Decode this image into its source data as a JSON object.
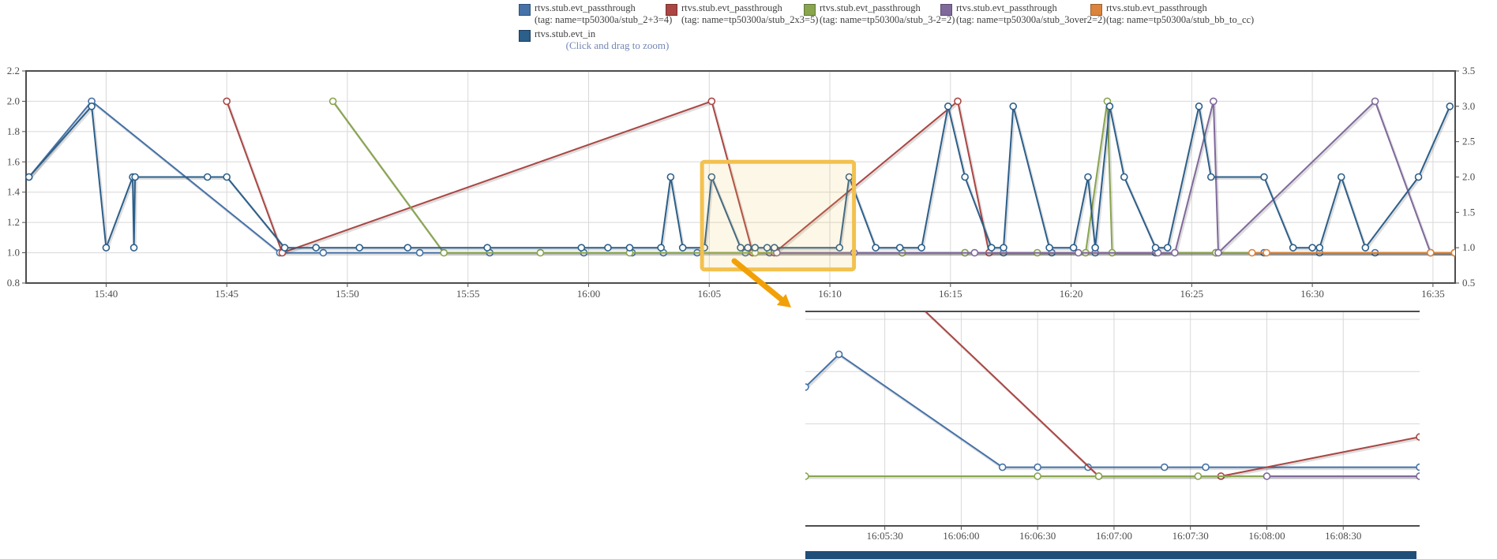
{
  "hint": "(Click and drag to zoom)",
  "legend": {
    "items": [
      {
        "line1": "rtvs.stub.evt_passthrough",
        "line2": "(tag: name=tp50300a/stub_2+3=4)",
        "color": "#4572A7",
        "border": "#2F5278"
      },
      {
        "line1": "rtvs.stub.evt_passthrough",
        "line2": "(tag: name=tp50300a/stub_2x3=5)",
        "color": "#AA4643",
        "border": "#7A3230"
      },
      {
        "line1": "rtvs.stub.evt_passthrough",
        "line2": "(tag: name=tp50300a/stub_3-2=2)",
        "color": "#89A54E",
        "border": "#62773B"
      },
      {
        "line1": "rtvs.stub.evt_passthrough",
        "line2": "(tag: name=tp50300a/stub_3over2=2)",
        "color": "#80699B",
        "border": "#5C4C70"
      },
      {
        "line1": "rtvs.stub.evt_passthrough",
        "line2": "(tag: name=tp50300a/stub_bb_to_cc)",
        "color": "#DB843D",
        "border": "#9E5F2B"
      },
      {
        "line1": "rtvs.stub.evt_in",
        "line2": "",
        "color": "#2C5F8A",
        "border": "#1B3C5E"
      }
    ]
  },
  "chart_data": [
    {
      "type": "line",
      "title": "",
      "x_domain": [
        936.68,
        995.92
      ],
      "x_unit": "minutes-of-day",
      "ylim_left": [
        0.8,
        2.2
      ],
      "ylim_right": [
        0.5,
        3.5
      ],
      "grid": true,
      "xticks": [
        [
          940,
          "15:40"
        ],
        [
          945,
          "15:45"
        ],
        [
          950,
          "15:50"
        ],
        [
          955,
          "15:55"
        ],
        [
          960,
          "16:00"
        ],
        [
          965,
          "16:05"
        ],
        [
          970,
          "16:10"
        ],
        [
          975,
          "16:15"
        ],
        [
          980,
          "16:20"
        ],
        [
          985,
          "16:25"
        ],
        [
          990,
          "16:30"
        ],
        [
          995,
          "16:35"
        ]
      ],
      "yticks_left": [
        [
          0.8,
          "0.8"
        ],
        [
          1.0,
          "1.0"
        ],
        [
          1.2,
          "1.2"
        ],
        [
          1.4,
          "1.4"
        ],
        [
          1.6,
          "1.6"
        ],
        [
          1.8,
          "1.8"
        ],
        [
          2.0,
          "2.0"
        ],
        [
          2.2,
          "2.2"
        ]
      ],
      "yticks_right": [
        [
          0.5,
          "0.5"
        ],
        [
          1.0,
          "1.0"
        ],
        [
          1.5,
          "1.5"
        ],
        [
          2.0,
          "2.0"
        ],
        [
          2.5,
          "2.5"
        ],
        [
          3.0,
          "3.0"
        ],
        [
          3.5,
          "3.5"
        ]
      ],
      "series": [
        {
          "name": "rtvs.stub.evt_passthrough",
          "tag": "name=tp50300a/stub_2+3=4",
          "color": "#4572A7",
          "axis": "left",
          "points": [
            [
              936.8,
              1.5
            ],
            [
              939.4,
              2.0
            ],
            [
              947.2,
              1.0
            ],
            [
              949.0,
              1.0
            ],
            [
              953.0,
              1.0
            ],
            [
              955.9,
              1.0
            ],
            [
              959.8,
              1.0
            ],
            [
              961.8,
              1.0
            ],
            [
              963.1,
              1.0
            ],
            [
              964.5,
              1.0
            ],
            [
              966.5,
              1.0
            ],
            [
              967.5,
              1.0
            ],
            [
              971.0,
              1.0
            ],
            [
              973.0,
              1.0
            ],
            [
              975.6,
              1.0
            ],
            [
              977.2,
              1.0
            ],
            [
              979.2,
              1.0
            ],
            [
              981.0,
              1.0
            ],
            [
              983.5,
              1.0
            ],
            [
              986.0,
              1.0
            ],
            [
              988.0,
              1.0
            ],
            [
              990.3,
              1.0
            ],
            [
              992.6,
              1.0
            ],
            [
              994.9,
              1.0
            ],
            [
              995.9,
              1.0
            ]
          ]
        },
        {
          "name": "rtvs.stub.evt_passthrough",
          "tag": "name=tp50300a/stub_2x3=5",
          "color": "#AA4643",
          "axis": "left",
          "points": [
            [
              945.0,
              2.0
            ],
            [
              947.3,
              1.0
            ],
            [
              965.1,
              2.0
            ],
            [
              966.8,
              1.0
            ],
            [
              967.7,
              1.0
            ],
            [
              975.3,
              2.0
            ],
            [
              976.6,
              1.0
            ],
            [
              986.0,
              1.0
            ],
            [
              995.9,
              1.0
            ]
          ]
        },
        {
          "name": "rtvs.stub.evt_passthrough",
          "tag": "name=tp50300a/stub_3-2=2",
          "color": "#89A54E",
          "axis": "left",
          "points": [
            [
              949.4,
              2.0
            ],
            [
              954.0,
              1.0
            ],
            [
              958.0,
              1.0
            ],
            [
              961.7,
              1.0
            ],
            [
              966.9,
              1.0
            ],
            [
              973.0,
              1.0
            ],
            [
              975.6,
              1.0
            ],
            [
              978.6,
              1.0
            ],
            [
              980.6,
              1.0
            ],
            [
              981.5,
              2.0
            ],
            [
              981.7,
              1.0
            ],
            [
              986.0,
              1.0
            ],
            [
              995.9,
              1.0
            ]
          ]
        },
        {
          "name": "rtvs.stub.evt_passthrough",
          "tag": "name=tp50300a/stub_3over2=2",
          "color": "#80699B",
          "axis": "left",
          "points": [
            [
              967.8,
              1.0
            ],
            [
              971.0,
              1.0
            ],
            [
              976.0,
              1.0
            ],
            [
              980.3,
              1.0
            ],
            [
              983.6,
              1.0
            ],
            [
              984.3,
              1.0
            ],
            [
              985.9,
              2.0
            ],
            [
              986.1,
              1.0
            ],
            [
              992.6,
              2.0
            ],
            [
              994.9,
              1.0
            ],
            [
              995.9,
              1.0
            ]
          ]
        },
        {
          "name": "rtvs.stub.evt_passthrough",
          "tag": "name=tp50300a/stub_bb_to_cc",
          "color": "#DB843D",
          "axis": "left",
          "points": [
            [
              987.5,
              1.0
            ],
            [
              988.1,
              1.0
            ],
            [
              994.9,
              1.0
            ],
            [
              995.9,
              1.0
            ]
          ]
        },
        {
          "name": "rtvs.stub.evt_in",
          "tag": "",
          "color": "#2C5F8A",
          "axis": "right",
          "points": [
            [
              936.8,
              2.0
            ],
            [
              939.4,
              3.0
            ],
            [
              940.0,
              1.0
            ],
            [
              941.1,
              2.0
            ],
            [
              941.15,
              1.0
            ],
            [
              941.2,
              2.0
            ],
            [
              944.2,
              2.0
            ],
            [
              945.0,
              2.0
            ],
            [
              947.4,
              1.0
            ],
            [
              948.7,
              1.0
            ],
            [
              950.5,
              1.0
            ],
            [
              952.5,
              1.0
            ],
            [
              955.8,
              1.0
            ],
            [
              959.7,
              1.0
            ],
            [
              960.8,
              1.0
            ],
            [
              961.7,
              1.0
            ],
            [
              963.0,
              1.0
            ],
            [
              963.4,
              2.0
            ],
            [
              963.9,
              1.0
            ],
            [
              964.8,
              1.0
            ],
            [
              965.1,
              2.0
            ],
            [
              966.3,
              1.0
            ],
            [
              966.6,
              1.0
            ],
            [
              966.9,
              1.0
            ],
            [
              967.4,
              1.0
            ],
            [
              967.7,
              1.0
            ],
            [
              970.4,
              1.0
            ],
            [
              970.8,
              2.0
            ],
            [
              971.9,
              1.0
            ],
            [
              972.9,
              1.0
            ],
            [
              973.8,
              1.0
            ],
            [
              974.9,
              3.0
            ],
            [
              975.6,
              2.0
            ],
            [
              976.7,
              1.0
            ],
            [
              977.2,
              1.0
            ],
            [
              977.6,
              3.0
            ],
            [
              979.1,
              1.0
            ],
            [
              980.1,
              1.0
            ],
            [
              980.7,
              2.0
            ],
            [
              981.0,
              1.0
            ],
            [
              981.6,
              3.0
            ],
            [
              982.2,
              2.0
            ],
            [
              983.5,
              1.0
            ],
            [
              984.0,
              1.0
            ],
            [
              985.3,
              3.0
            ],
            [
              985.8,
              2.0
            ],
            [
              988.0,
              2.0
            ],
            [
              989.2,
              1.0
            ],
            [
              990.0,
              1.0
            ],
            [
              990.3,
              1.0
            ],
            [
              991.2,
              2.0
            ],
            [
              992.2,
              1.0
            ],
            [
              994.4,
              2.0
            ],
            [
              995.7,
              3.0
            ]
          ]
        }
      ]
    },
    {
      "type": "line",
      "title": "",
      "x_domain": [
        964.98,
        969.0
      ],
      "x_unit": "minutes-of-day",
      "ylim_left": [
        0.81,
        1.63
      ],
      "ylim_right": [
        0.48,
        2.38
      ],
      "grid": true,
      "grid_left": [
        1.0,
        1.2,
        1.4,
        1.6
      ],
      "xticks": [
        [
          965.5,
          "16:05:30"
        ],
        [
          966,
          "16:06:00"
        ],
        [
          966.5,
          "16:06:30"
        ],
        [
          967,
          "16:07:00"
        ],
        [
          967.5,
          "16:07:30"
        ],
        [
          968,
          "16:08:00"
        ],
        [
          968.5,
          "16:08:30"
        ]
      ],
      "yticks_left": [],
      "yticks_right": [],
      "series": [
        {
          "name": "rtvs.stub.evt_in",
          "tag": "",
          "color": "#4572A7",
          "axis": "right",
          "points": [
            [
              964.98,
              1.71
            ],
            [
              965.2,
              2.0
            ],
            [
              966.27,
              1.0
            ],
            [
              966.5,
              1.0
            ],
            [
              966.83,
              1.0
            ],
            [
              967.33,
              1.0
            ],
            [
              967.6,
              1.0
            ],
            [
              969.0,
              1.0
            ]
          ]
        },
        {
          "name": "rtvs.stub.evt_passthrough",
          "tag": "name=tp50300a/stub_2x3=5",
          "color": "#AA4643",
          "axis": "left",
          "points": [
            [
              965.1,
              2.0
            ],
            [
              966.9,
              1.0
            ],
            [
              967.7,
              1.0
            ],
            [
              969.0,
              1.15
            ]
          ]
        },
        {
          "name": "rtvs.stub.evt_passthrough",
          "tag": "name=tp50300a/stub_3-2=2",
          "color": "#89A54E",
          "axis": "left",
          "points": [
            [
              964.98,
              1.0
            ],
            [
              966.5,
              1.0
            ],
            [
              966.9,
              1.0
            ],
            [
              967.55,
              1.0
            ],
            [
              969.0,
              1.0
            ]
          ]
        },
        {
          "name": "rtvs.stub.evt_passthrough",
          "tag": "name=tp50300a/stub_3over2=2",
          "color": "#80699B",
          "axis": "left",
          "points": [
            [
              968.0,
              1.0
            ],
            [
              969.0,
              1.0
            ]
          ]
        }
      ]
    }
  ],
  "annotations": {
    "selection_box": {
      "t0": 964.7,
      "t1": 971.0,
      "v0": 0.89,
      "v1": 1.6,
      "stroke": "#F2C14E",
      "fill": "rgba(242,193,78,0.13)"
    },
    "arrow": {
      "color": "#F2A007"
    },
    "next_chart_strip": {
      "color": "#1F4E79"
    }
  },
  "style": {
    "grid_color": "#D8D8D8",
    "frame_color": "#4D4D4D",
    "tick_label_color": "#4D4D4D",
    "marker_fill": "#FFFFFF"
  }
}
